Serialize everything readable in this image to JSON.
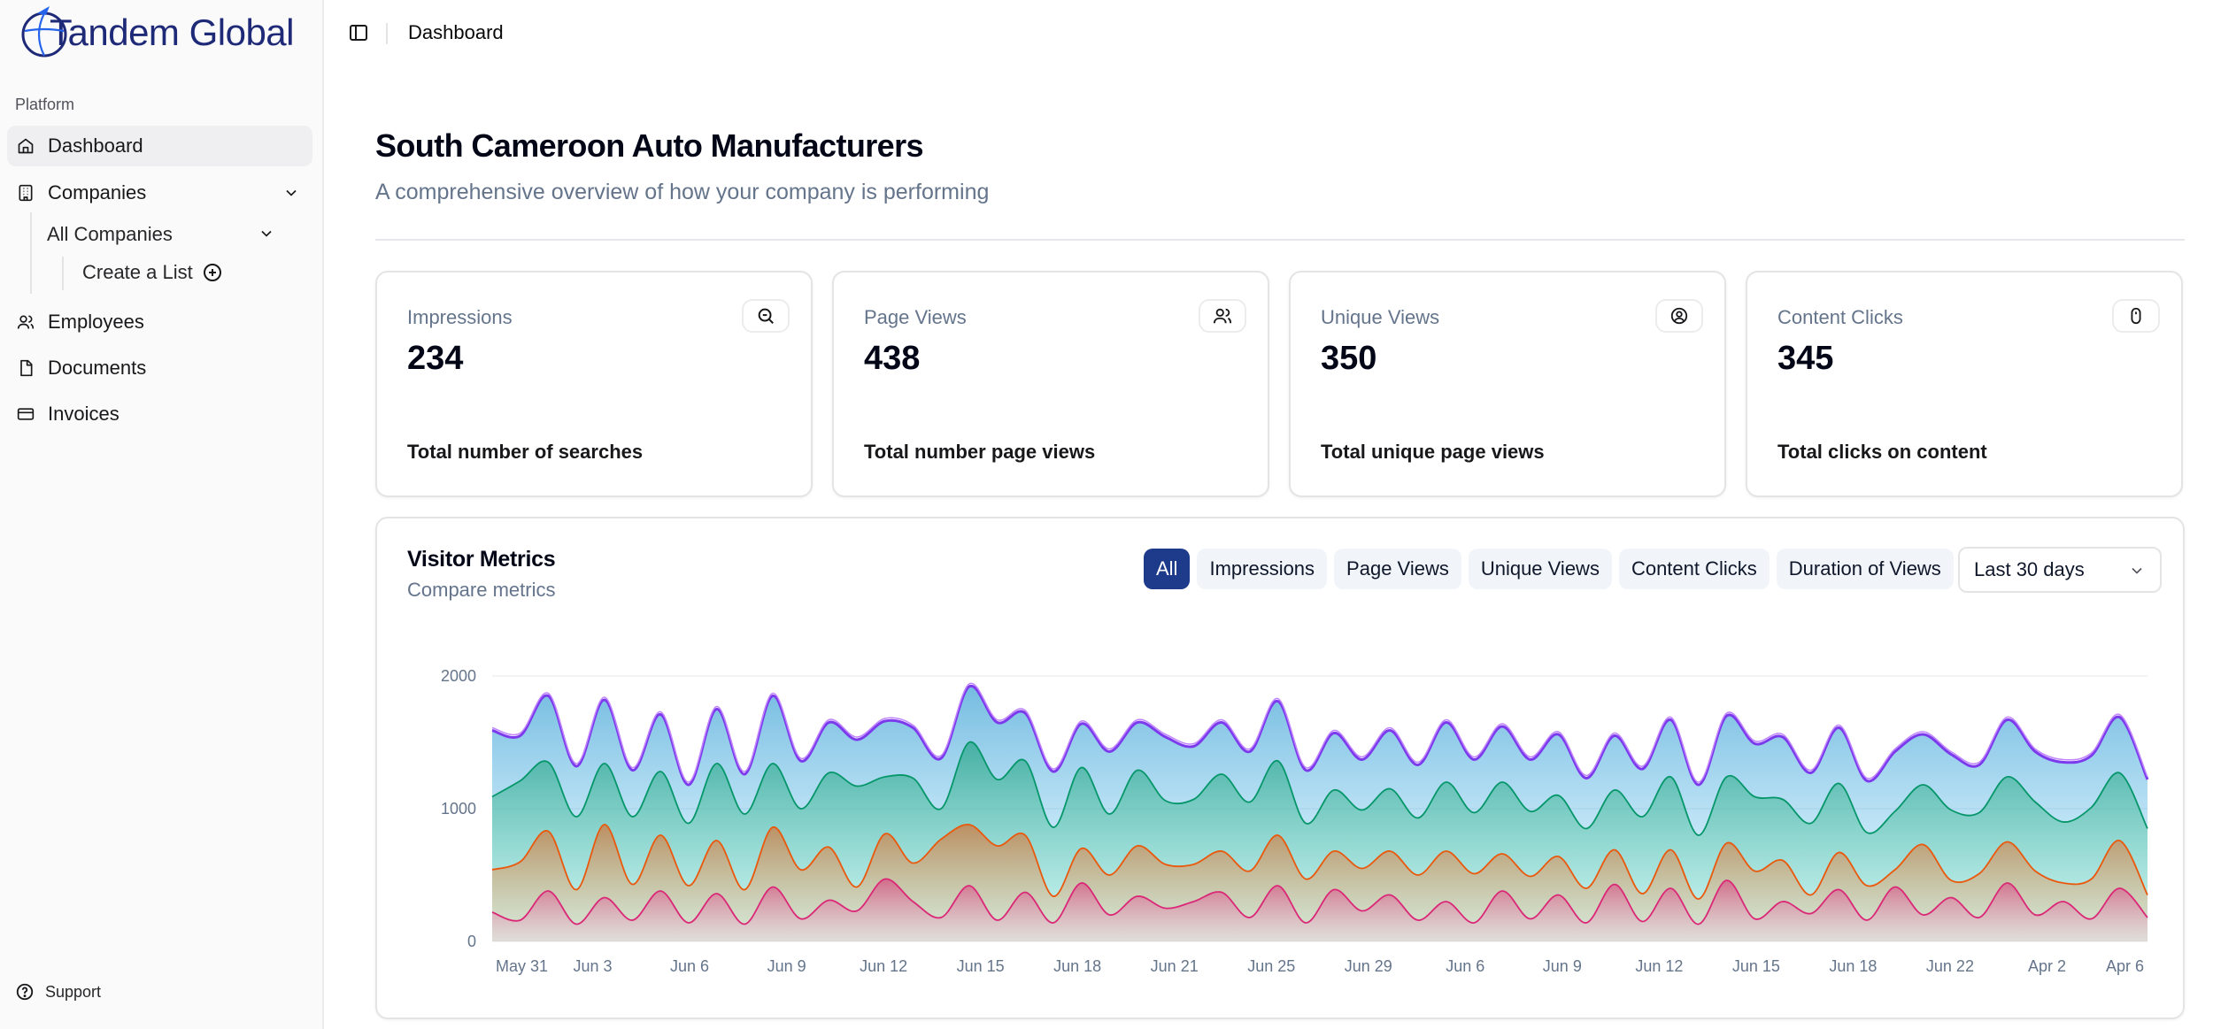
{
  "brand": {
    "name": "Tandem Global",
    "color": "#1e2a78"
  },
  "sidebar": {
    "group_label": "Platform",
    "items": [
      {
        "label": "Dashboard",
        "icon": "home-icon",
        "active": true
      },
      {
        "label": "Companies",
        "icon": "building-icon",
        "expanded": true
      },
      {
        "label": "Employees",
        "icon": "users-icon"
      },
      {
        "label": "Documents",
        "icon": "document-icon"
      },
      {
        "label": "Invoices",
        "icon": "credit-card-icon"
      }
    ],
    "sub_items": [
      {
        "label": "All Companies",
        "icon": "chevron-down-icon"
      },
      {
        "label": "Create a List",
        "icon": "plus-circle-icon"
      }
    ],
    "support_label": "Support"
  },
  "topbar": {
    "breadcrumb": "Dashboard",
    "toggle_icon": "sidebar-toggle-icon"
  },
  "header": {
    "title": "South Cameroon Auto Manufacturers",
    "subtitle": "A comprehensive overview of how your company is performing"
  },
  "stats": [
    {
      "label": "Impressions",
      "value": "234",
      "description": "Total number of searches",
      "icon": "search-icon"
    },
    {
      "label": "Page Views",
      "value": "438",
      "description": "Total number page views",
      "icon": "users-icon"
    },
    {
      "label": "Unique Views",
      "value": "350",
      "description": "Total unique page views",
      "icon": "user-circle-icon"
    },
    {
      "label": "Content Clicks",
      "value": "345",
      "description": "Total clicks on content",
      "icon": "mouse-icon"
    }
  ],
  "metrics": {
    "title": "Visitor Metrics",
    "subtitle": "Compare metrics",
    "filters": [
      "All",
      "Impressions",
      "Page Views",
      "Unique Views",
      "Content Clicks",
      "Duration of Views"
    ],
    "active_filter": "All",
    "range": "Last 30 days"
  },
  "chart_data": {
    "type": "area",
    "stacked": true,
    "ylim": [
      0,
      2000
    ],
    "yticks": [
      0,
      1000,
      2000
    ],
    "xticks": [
      "May 31",
      "Jun 3",
      "Jun 6",
      "Jun 9",
      "Jun 12",
      "Jun 15",
      "Jun 18",
      "Jun 21",
      "Jun 25",
      "Jun 29",
      "Jun 6",
      "Jun 9",
      "Jun 12",
      "Jun 15",
      "Jun 18",
      "Jun 22",
      "Apr 2",
      "Apr 6"
    ],
    "grid": true,
    "series": [
      {
        "color": "#db2777",
        "values": [
          220,
          160,
          380,
          130,
          330,
          160,
          380,
          140,
          360,
          130,
          410,
          170,
          310,
          230,
          470,
          300,
          180,
          420,
          160,
          370,
          140,
          440,
          200,
          340,
          250,
          300,
          370,
          180,
          420,
          140,
          390,
          230,
          350,
          160,
          300,
          140,
          380,
          170,
          350,
          140,
          430,
          150,
          400,
          130,
          460,
          170,
          300,
          210,
          390,
          160,
          410,
          200,
          330,
          180,
          440,
          200,
          300,
          170,
          400,
          180
        ]
      },
      {
        "color": "#ea580c",
        "values": [
          320,
          440,
          450,
          260,
          550,
          270,
          420,
          280,
          400,
          260,
          450,
          370,
          400,
          180,
          340,
          290,
          590,
          460,
          560,
          430,
          200,
          260,
          300,
          380,
          330,
          280,
          310,
          350,
          380,
          330,
          290,
          320,
          330,
          340,
          380,
          370,
          280,
          320,
          290,
          260,
          260,
          210,
          290,
          190,
          280,
          360,
          310,
          140,
          280,
          260,
          130,
          530,
          130,
          330,
          310,
          330,
          140,
          300,
          360,
          170
        ]
      },
      {
        "color": "#059669",
        "values": [
          550,
          610,
          520,
          550,
          460,
          510,
          480,
          470,
          580,
          570,
          480,
          460,
          560,
          760,
          430,
          640,
          230,
          620,
          500,
          560,
          520,
          610,
          460,
          570,
          480,
          490,
          580,
          520,
          560,
          420,
          460,
          440,
          470,
          430,
          520,
          460,
          540,
          490,
          460,
          450,
          450,
          580,
          550,
          480,
          500,
          560,
          460,
          540,
          520,
          400,
          440,
          450,
          530,
          460,
          490,
          520,
          460,
          540,
          510,
          500
        ]
      },
      {
        "color": "#7c3aed",
        "values": [
          500,
          340,
          500,
          380,
          480,
          350,
          430,
          290,
          410,
          300,
          510,
          360,
          380,
          350,
          420,
          380,
          380,
          420,
          430,
          360,
          420,
          330,
          470,
          360,
          480,
          400,
          390,
          380,
          450,
          400,
          430,
          380,
          440,
          400,
          450,
          400,
          420,
          390,
          460,
          380,
          410,
          360,
          430,
          380,
          460,
          400,
          470,
          380,
          420,
          390,
          450,
          380,
          420,
          360,
          430,
          380,
          450,
          390,
          420,
          370
        ]
      }
    ]
  },
  "colors": {
    "primary": "#1e3a8a",
    "muted": "#64748b",
    "border": "#e4e4e7"
  }
}
